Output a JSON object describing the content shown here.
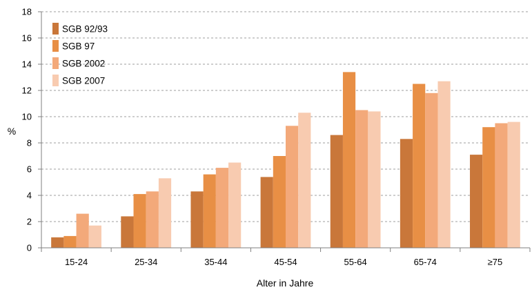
{
  "chart_data": {
    "type": "bar",
    "title": "",
    "xlabel": "Alter in Jahre",
    "ylabel": "%",
    "categories": [
      "15-24",
      "25-34",
      "35-44",
      "45-54",
      "55-64",
      "65-74",
      "≥75"
    ],
    "series": [
      {
        "name": "SGB 92/93",
        "color": "#c9773a",
        "values": [
          0.8,
          2.4,
          4.3,
          5.4,
          8.6,
          8.3,
          7.1
        ]
      },
      {
        "name": "SGB 97",
        "color": "#e88f45",
        "values": [
          0.9,
          4.1,
          5.6,
          7.0,
          13.4,
          12.5,
          9.2
        ]
      },
      {
        "name": "SGB 2002",
        "color": "#f3a97a",
        "values": [
          2.6,
          4.3,
          6.1,
          9.3,
          10.5,
          11.8,
          9.5
        ]
      },
      {
        "name": "SGB 2007",
        "color": "#f8cbb0",
        "values": [
          1.7,
          5.3,
          6.5,
          10.3,
          10.4,
          12.7,
          9.6
        ]
      }
    ],
    "ylim": [
      0,
      18
    ],
    "yticks": [
      0,
      2,
      4,
      6,
      8,
      10,
      12,
      14,
      16,
      18
    ],
    "grid": true,
    "legend": "top-left"
  }
}
